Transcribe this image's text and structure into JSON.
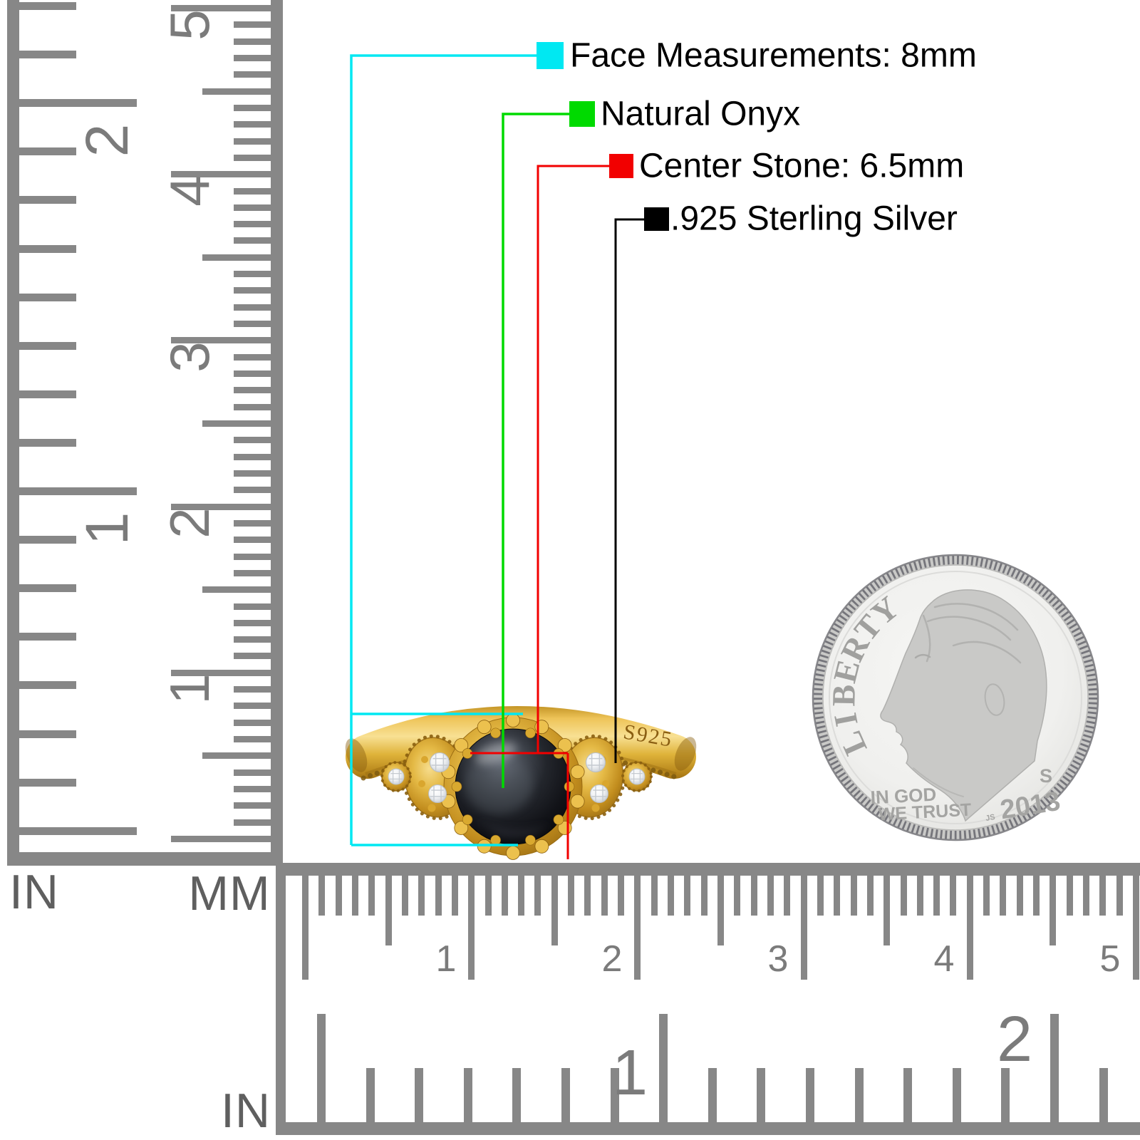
{
  "annotations": {
    "items": [
      {
        "id": "face",
        "label": "Face Measurements: 8mm",
        "color": "#00e8f2"
      },
      {
        "id": "stone_type",
        "label": "Natural Onyx",
        "color": "#00da00"
      },
      {
        "id": "center_stone",
        "label": "Center Stone: 6.5mm",
        "color": "#f20000"
      },
      {
        "id": "metal",
        "label": ".925 Sterling Silver",
        "color": "#000000"
      }
    ]
  },
  "ring": {
    "engraving": "S925"
  },
  "coin": {
    "legend": "LIBERTY",
    "motto_line1": "IN GOD",
    "motto_line2": "WE TRUST",
    "year": "2013",
    "mint_mark": "S",
    "designer_initials": "JS"
  },
  "rulers": {
    "vertical": {
      "inch_unit": "IN",
      "mm_unit": "MM",
      "inch_numbers": [
        "2",
        "1"
      ],
      "cm_numbers": [
        "5",
        "4",
        "3",
        "2",
        "1"
      ]
    },
    "horizontal": {
      "inch_unit": "IN",
      "cm_numbers": [
        "1",
        "2",
        "3",
        "4",
        "5"
      ],
      "inch_numbers": [
        "1",
        "2"
      ]
    }
  },
  "colors": {
    "background": "#ffffff",
    "ruler": "#878787",
    "ruler_numbers": "#7b7b7b",
    "unit_labels": "#5f5f5f",
    "gold": "#d7a432",
    "gold_dark": "#8f6410",
    "onyx": "#14161b",
    "diamond": "#f4f6f8",
    "coin_silver": "#efefed",
    "label_text": "#000000"
  }
}
